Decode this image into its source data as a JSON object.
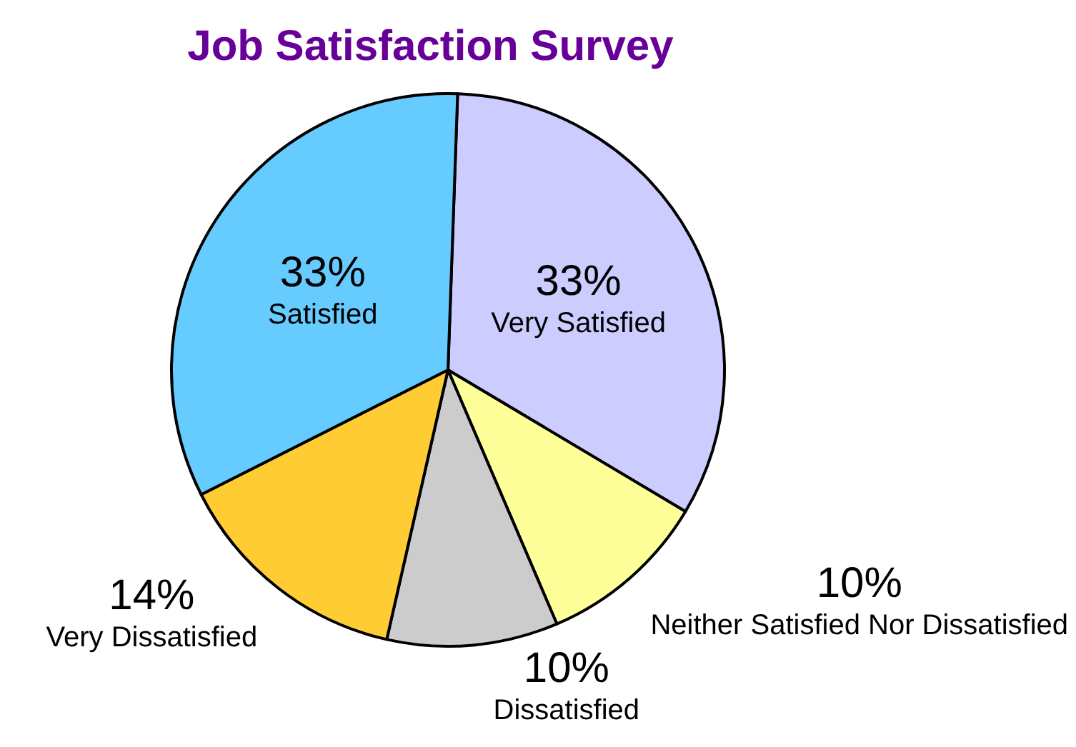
{
  "chart_data": {
    "type": "pie",
    "title": "Job Satisfaction Survey",
    "categories": [
      "Very Satisfied",
      "Neither Satisfied Nor Dissatisfied",
      "Dissatisfied",
      "Very Dissatisfied",
      "Satisfied"
    ],
    "values": [
      33,
      10,
      10,
      14,
      33
    ],
    "value_labels": [
      "33%",
      "10%",
      "10%",
      "14%",
      "33%"
    ],
    "colors": [
      "#ccccff",
      "#ffff99",
      "#cccccc",
      "#ffcc33",
      "#66ccff"
    ],
    "legend": false
  }
}
